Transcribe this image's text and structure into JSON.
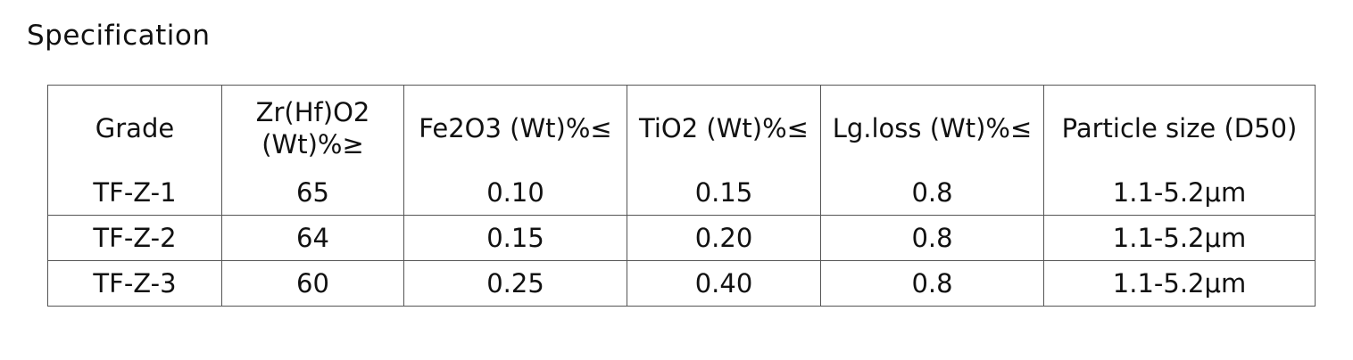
{
  "header": {
    "title": "Specification"
  },
  "table": {
    "columns": [
      "Grade",
      "Zr(Hf)O2 (Wt)%≥",
      "Fe2O3 (Wt)%≤",
      "TiO2 (Wt)%≤",
      "Lg.loss (Wt)%≤",
      "Particle size (D50)"
    ],
    "rows": [
      [
        "TF-Z-1",
        "65",
        "0.10",
        "0.15",
        "0.8",
        "1.1-5.2μm"
      ],
      [
        "TF-Z-2",
        "64",
        "0.15",
        "0.20",
        "0.8",
        "1.1-5.2μm"
      ],
      [
        "TF-Z-3",
        "60",
        "0.25",
        "0.40",
        "0.8",
        "1.1-5.2μm"
      ]
    ]
  }
}
